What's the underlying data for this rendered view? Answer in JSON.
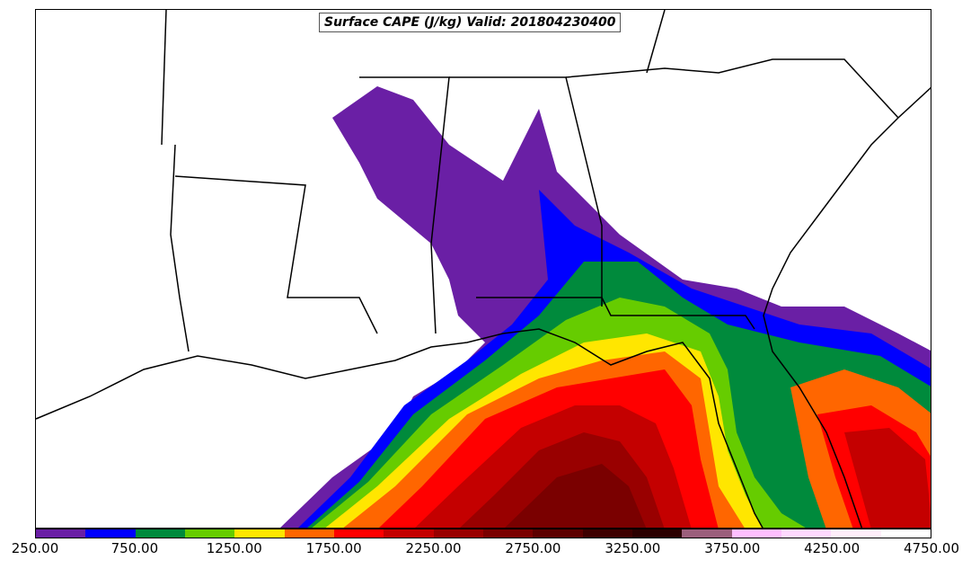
{
  "title": "Surface CAPE (J/kg) Valid: 201804230400",
  "colorbar": {
    "tick_labels": [
      "250.00",
      "750.00",
      "1250.00",
      "1750.00",
      "2250.00",
      "2750.00",
      "3250.00",
      "3750.00",
      "4250.00",
      "4750.00"
    ],
    "colors": [
      "#6a1fa5",
      "#0000ff",
      "#008a3c",
      "#66cc00",
      "#ffe600",
      "#ff6600",
      "#ff0000",
      "#c40000",
      "#990000",
      "#7a0000",
      "#5c0000",
      "#3d0000",
      "#2a0000",
      "#9b5f7c",
      "#ffbfff",
      "#ffd9ff",
      "#ffeefa",
      "#ffffff"
    ]
  }
}
